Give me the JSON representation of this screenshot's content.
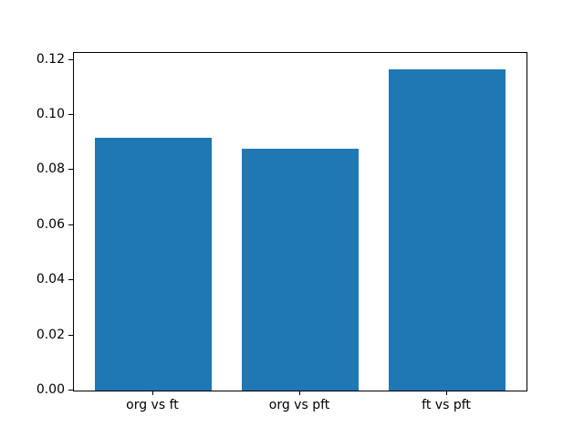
{
  "chart_data": {
    "type": "bar",
    "categories": [
      "org vs ft",
      "org vs pft",
      "ft vs pft"
    ],
    "values": [
      0.0916,
      0.0876,
      0.1164
    ],
    "title": "",
    "xlabel": "",
    "ylabel": "",
    "ylim": [
      0,
      0.1225
    ],
    "yticks": [
      0.0,
      0.02,
      0.04,
      0.06,
      0.08,
      0.1,
      0.12
    ],
    "ytick_labels": [
      "0.00",
      "0.02",
      "0.04",
      "0.06",
      "0.08",
      "0.10",
      "0.12"
    ],
    "bar_color": "#1f77b4",
    "bar_width_fraction": 0.8,
    "grid": false,
    "legend": false,
    "background_color": "#ffffff",
    "axis_color": "#000000",
    "text_color": "#000000"
  }
}
